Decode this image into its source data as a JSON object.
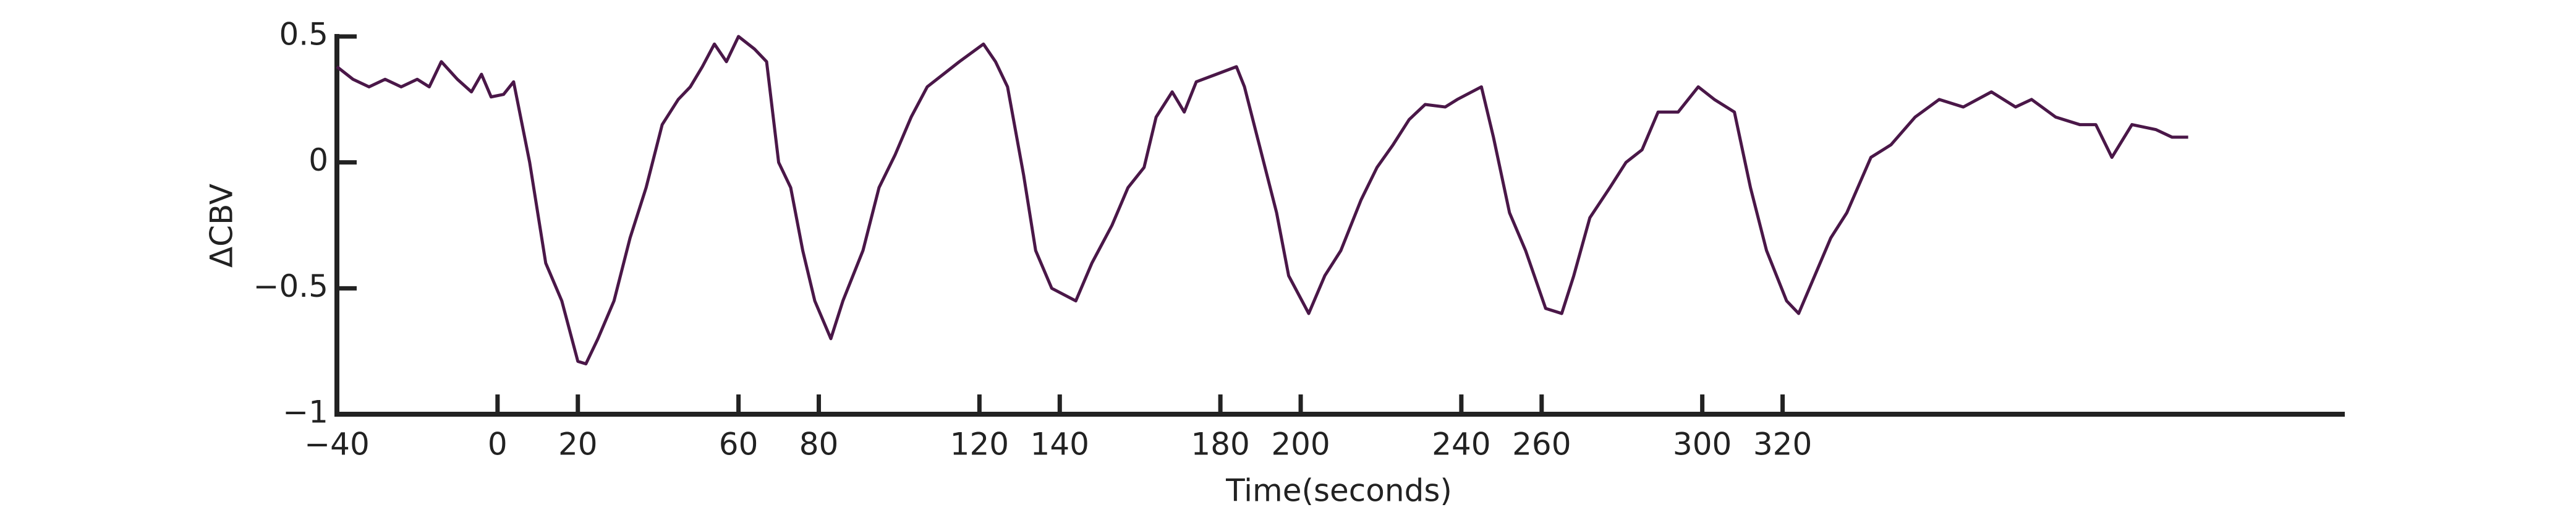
{
  "chart_data": {
    "type": "line",
    "x_label": "Time(seconds)",
    "y_label": "ΔCBV",
    "xlim": [
      -40,
      460
    ],
    "ylim": [
      -1,
      0.5
    ],
    "xticks": [
      {
        "value": -40,
        "label": "−40"
      },
      0,
      20,
      60,
      80,
      120,
      140,
      180,
      200,
      240,
      260,
      300,
      320
    ],
    "yticks": [
      {
        "value": -1,
        "label": "−1"
      },
      {
        "value": -0.5,
        "label": "−0.5"
      },
      0,
      0.5
    ],
    "series": [
      {
        "color": "#4a1748",
        "x": [
          -40,
          -36,
          -32,
          -28,
          -24,
          -20,
          -17,
          -14,
          -10,
          -6.5,
          -4,
          -1.6,
          1.5,
          4,
          8,
          12,
          16,
          20,
          22,
          25,
          29,
          33,
          37,
          41,
          45,
          48,
          51,
          54,
          57,
          60,
          64,
          67,
          70,
          73,
          76,
          79,
          83,
          86,
          91,
          95,
          99,
          103,
          107,
          111,
          115,
          121,
          124,
          127,
          131,
          134,
          138,
          144,
          148,
          153,
          157,
          161,
          164,
          168,
          171,
          174,
          179,
          184,
          186,
          190,
          194,
          197,
          202,
          206,
          210,
          215,
          219,
          223,
          227,
          231,
          236,
          239,
          245,
          248,
          252,
          256,
          261,
          265,
          268,
          272,
          277,
          281,
          285,
          289,
          294,
          299,
          303,
          308,
          312,
          316,
          321,
          324,
          328,
          332,
          336,
          342,
          347,
          353,
          359,
          365,
          372,
          378,
          382,
          388,
          394,
          398,
          402,
          407,
          413,
          417,
          421
        ],
        "values": [
          0.38,
          0.33,
          0.3,
          0.33,
          0.3,
          0.33,
          0.3,
          0.4,
          0.33,
          0.28,
          0.35,
          0.26,
          0.27,
          0.32,
          0.0,
          -0.4,
          -0.55,
          -0.79,
          -0.8,
          -0.7,
          -0.55,
          -0.3,
          -0.1,
          0.15,
          0.25,
          0.3,
          0.38,
          0.47,
          0.4,
          0.5,
          0.45,
          0.4,
          0.0,
          -0.1,
          -0.35,
          -0.55,
          -0.7,
          -0.55,
          -0.35,
          -0.1,
          0.03,
          0.18,
          0.3,
          0.35,
          0.4,
          0.47,
          0.4,
          0.3,
          -0.05,
          -0.35,
          -0.5,
          -0.55,
          -0.4,
          -0.25,
          -0.1,
          -0.02,
          0.18,
          0.28,
          0.2,
          0.32,
          0.35,
          0.38,
          0.3,
          0.05,
          -0.2,
          -0.45,
          -0.6,
          -0.45,
          -0.35,
          -0.15,
          -0.02,
          0.07,
          0.17,
          0.23,
          0.22,
          0.25,
          0.3,
          0.1,
          -0.2,
          -0.35,
          -0.58,
          -0.6,
          -0.45,
          -0.22,
          -0.1,
          0.0,
          0.05,
          0.2,
          0.2,
          0.3,
          0.25,
          0.2,
          -0.1,
          -0.35,
          -0.55,
          -0.6,
          -0.45,
          -0.3,
          -0.2,
          0.02,
          0.07,
          0.18,
          0.25,
          0.22,
          0.28,
          0.22,
          0.25,
          0.18,
          0.15,
          0.15,
          0.02,
          0.15,
          0.13,
          0.1,
          0.1
        ]
      }
    ]
  }
}
